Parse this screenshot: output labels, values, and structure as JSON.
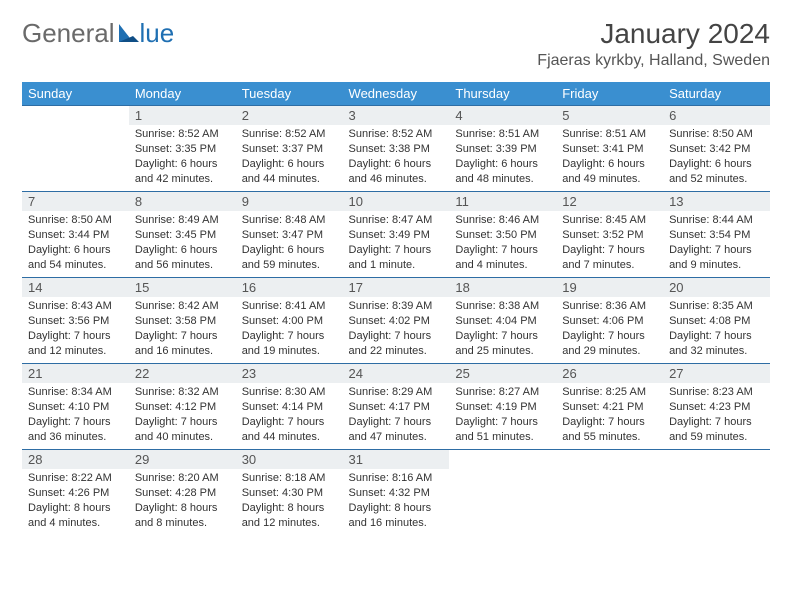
{
  "logo": {
    "part1": "General",
    "part2": "lue"
  },
  "title": "January 2024",
  "location": "Fjaeras kyrkby, Halland, Sweden",
  "colors": {
    "header_bg": "#3a8fd0",
    "header_text": "#ffffff",
    "daynum_bg": "#eceff1",
    "border": "#2e6da4",
    "logo_gray": "#6a6a6a",
    "logo_blue": "#1f6fb2"
  },
  "typography": {
    "title_fontsize": 28,
    "location_fontsize": 16,
    "header_fontsize": 13,
    "cell_fontsize": 11
  },
  "weekdays": [
    "Sunday",
    "Monday",
    "Tuesday",
    "Wednesday",
    "Thursday",
    "Friday",
    "Saturday"
  ],
  "weeks": [
    [
      {
        "day": "",
        "text": ""
      },
      {
        "day": "1",
        "text": "Sunrise: 8:52 AM\nSunset: 3:35 PM\nDaylight: 6 hours and 42 minutes."
      },
      {
        "day": "2",
        "text": "Sunrise: 8:52 AM\nSunset: 3:37 PM\nDaylight: 6 hours and 44 minutes."
      },
      {
        "day": "3",
        "text": "Sunrise: 8:52 AM\nSunset: 3:38 PM\nDaylight: 6 hours and 46 minutes."
      },
      {
        "day": "4",
        "text": "Sunrise: 8:51 AM\nSunset: 3:39 PM\nDaylight: 6 hours and 48 minutes."
      },
      {
        "day": "5",
        "text": "Sunrise: 8:51 AM\nSunset: 3:41 PM\nDaylight: 6 hours and 49 minutes."
      },
      {
        "day": "6",
        "text": "Sunrise: 8:50 AM\nSunset: 3:42 PM\nDaylight: 6 hours and 52 minutes."
      }
    ],
    [
      {
        "day": "7",
        "text": "Sunrise: 8:50 AM\nSunset: 3:44 PM\nDaylight: 6 hours and 54 minutes."
      },
      {
        "day": "8",
        "text": "Sunrise: 8:49 AM\nSunset: 3:45 PM\nDaylight: 6 hours and 56 minutes."
      },
      {
        "day": "9",
        "text": "Sunrise: 8:48 AM\nSunset: 3:47 PM\nDaylight: 6 hours and 59 minutes."
      },
      {
        "day": "10",
        "text": "Sunrise: 8:47 AM\nSunset: 3:49 PM\nDaylight: 7 hours and 1 minute."
      },
      {
        "day": "11",
        "text": "Sunrise: 8:46 AM\nSunset: 3:50 PM\nDaylight: 7 hours and 4 minutes."
      },
      {
        "day": "12",
        "text": "Sunrise: 8:45 AM\nSunset: 3:52 PM\nDaylight: 7 hours and 7 minutes."
      },
      {
        "day": "13",
        "text": "Sunrise: 8:44 AM\nSunset: 3:54 PM\nDaylight: 7 hours and 9 minutes."
      }
    ],
    [
      {
        "day": "14",
        "text": "Sunrise: 8:43 AM\nSunset: 3:56 PM\nDaylight: 7 hours and 12 minutes."
      },
      {
        "day": "15",
        "text": "Sunrise: 8:42 AM\nSunset: 3:58 PM\nDaylight: 7 hours and 16 minutes."
      },
      {
        "day": "16",
        "text": "Sunrise: 8:41 AM\nSunset: 4:00 PM\nDaylight: 7 hours and 19 minutes."
      },
      {
        "day": "17",
        "text": "Sunrise: 8:39 AM\nSunset: 4:02 PM\nDaylight: 7 hours and 22 minutes."
      },
      {
        "day": "18",
        "text": "Sunrise: 8:38 AM\nSunset: 4:04 PM\nDaylight: 7 hours and 25 minutes."
      },
      {
        "day": "19",
        "text": "Sunrise: 8:36 AM\nSunset: 4:06 PM\nDaylight: 7 hours and 29 minutes."
      },
      {
        "day": "20",
        "text": "Sunrise: 8:35 AM\nSunset: 4:08 PM\nDaylight: 7 hours and 32 minutes."
      }
    ],
    [
      {
        "day": "21",
        "text": "Sunrise: 8:34 AM\nSunset: 4:10 PM\nDaylight: 7 hours and 36 minutes."
      },
      {
        "day": "22",
        "text": "Sunrise: 8:32 AM\nSunset: 4:12 PM\nDaylight: 7 hours and 40 minutes."
      },
      {
        "day": "23",
        "text": "Sunrise: 8:30 AM\nSunset: 4:14 PM\nDaylight: 7 hours and 44 minutes."
      },
      {
        "day": "24",
        "text": "Sunrise: 8:29 AM\nSunset: 4:17 PM\nDaylight: 7 hours and 47 minutes."
      },
      {
        "day": "25",
        "text": "Sunrise: 8:27 AM\nSunset: 4:19 PM\nDaylight: 7 hours and 51 minutes."
      },
      {
        "day": "26",
        "text": "Sunrise: 8:25 AM\nSunset: 4:21 PM\nDaylight: 7 hours and 55 minutes."
      },
      {
        "day": "27",
        "text": "Sunrise: 8:23 AM\nSunset: 4:23 PM\nDaylight: 7 hours and 59 minutes."
      }
    ],
    [
      {
        "day": "28",
        "text": "Sunrise: 8:22 AM\nSunset: 4:26 PM\nDaylight: 8 hours and 4 minutes."
      },
      {
        "day": "29",
        "text": "Sunrise: 8:20 AM\nSunset: 4:28 PM\nDaylight: 8 hours and 8 minutes."
      },
      {
        "day": "30",
        "text": "Sunrise: 8:18 AM\nSunset: 4:30 PM\nDaylight: 8 hours and 12 minutes."
      },
      {
        "day": "31",
        "text": "Sunrise: 8:16 AM\nSunset: 4:32 PM\nDaylight: 8 hours and 16 minutes."
      },
      {
        "day": "",
        "text": ""
      },
      {
        "day": "",
        "text": ""
      },
      {
        "day": "",
        "text": ""
      }
    ]
  ]
}
